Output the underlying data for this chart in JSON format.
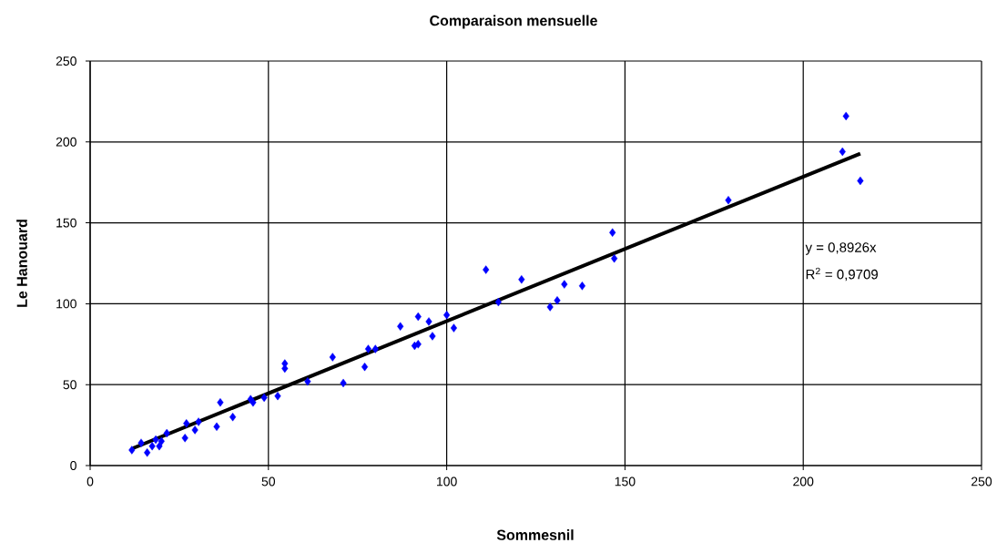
{
  "chart_data": {
    "type": "scatter",
    "title": "Comparaison mensuelle",
    "xlabel": "Sommesnil",
    "ylabel": "Le Hanouard",
    "xlim": [
      0,
      250
    ],
    "ylim": [
      0,
      250
    ],
    "xticks": [
      0,
      50,
      100,
      150,
      200,
      250
    ],
    "yticks": [
      0,
      50,
      100,
      150,
      200,
      250
    ],
    "grid": true,
    "marker": "diamond",
    "series": [
      {
        "color": "#0000ff",
        "x": [
          11.7,
          14.3,
          16,
          17.4,
          18.4,
          19.4,
          20,
          21.5,
          26.6,
          27,
          29.4,
          30.4,
          35.5,
          36.5,
          40,
          45,
          45.7,
          48.8,
          52.6,
          54.6,
          54.6,
          61,
          68,
          71,
          77,
          78,
          80,
          87,
          91,
          92,
          92,
          95,
          96,
          100,
          102,
          111,
          114.5,
          121,
          129,
          131,
          133,
          138,
          146.5,
          147,
          179,
          211,
          212,
          216
        ],
        "values": [
          9.6,
          14,
          8,
          12,
          16,
          12,
          15,
          20,
          17,
          26,
          22,
          27,
          24,
          39,
          30,
          41,
          39,
          42,
          43,
          63,
          60,
          52,
          67,
          51,
          61,
          72,
          72,
          86,
          74,
          75,
          92,
          89,
          80,
          93,
          85,
          121,
          101,
          115,
          98,
          102,
          112,
          111,
          144,
          128,
          164,
          194,
          216,
          176
        ]
      },
      {
        "type": "line",
        "color": "#000000",
        "marker": "none",
        "x": [
          12,
          216
        ],
        "values": [
          10.7,
          192.8
        ]
      }
    ],
    "annotations": [
      "y = 0,8926x",
      "R$^{2}$ = 0,9709"
    ]
  }
}
